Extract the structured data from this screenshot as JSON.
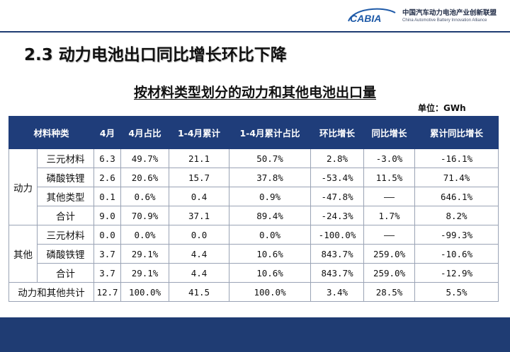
{
  "header": {
    "logo_mark_text": "CABIA",
    "org_name_cn": "中国汽车动力电池产业创新联盟",
    "org_name_en": "China Automotive Battery Innovation Alliance"
  },
  "section_title": "2.3  动力电池出口同比增长环比下降",
  "table_title": "按材料类型划分的动力和其他电池出口量",
  "unit": "单位：GWh",
  "table": {
    "headers": [
      "材料种类",
      "4月",
      "4月占比",
      "1-4月累计",
      "1-4月累计占比",
      "环比增长",
      "同比增长",
      "累计同比增长"
    ],
    "groups": [
      {
        "name": "动力",
        "rows": [
          [
            "三元材料",
            "6.3",
            "49.7%",
            "21.1",
            "50.7%",
            "2.8%",
            "-3.0%",
            "-16.1%"
          ],
          [
            "磷酸铁锂",
            "2.6",
            "20.6%",
            "15.7",
            "37.8%",
            "-53.4%",
            "11.5%",
            "71.4%"
          ],
          [
            "其他类型",
            "0.1",
            "0.6%",
            "0.4",
            "0.9%",
            "-47.8%",
            "——",
            "646.1%"
          ],
          [
            "合计",
            "9.0",
            "70.9%",
            "37.1",
            "89.4%",
            "-24.3%",
            "1.7%",
            "8.2%"
          ]
        ]
      },
      {
        "name": "其他",
        "rows": [
          [
            "三元材料",
            "0.0",
            "0.0%",
            "0.0",
            "0.0%",
            "-100.0%",
            "——",
            "-99.3%"
          ],
          [
            "磷酸铁锂",
            "3.7",
            "29.1%",
            "4.4",
            "10.6%",
            "843.7%",
            "259.0%",
            "-10.6%"
          ],
          [
            "合计",
            "3.7",
            "29.1%",
            "4.4",
            "10.6%",
            "843.7%",
            "259.0%",
            "-12.9%"
          ]
        ]
      }
    ],
    "grand_total": [
      "动力和其他共计",
      "12.7",
      "100.0%",
      "41.5",
      "100.0%",
      "3.4%",
      "28.5%",
      "5.5%"
    ]
  },
  "colors": {
    "header_bg": "#1f3d7a",
    "footer_bg": "#1f3c73",
    "logo_blue": "#1e5aa8"
  }
}
